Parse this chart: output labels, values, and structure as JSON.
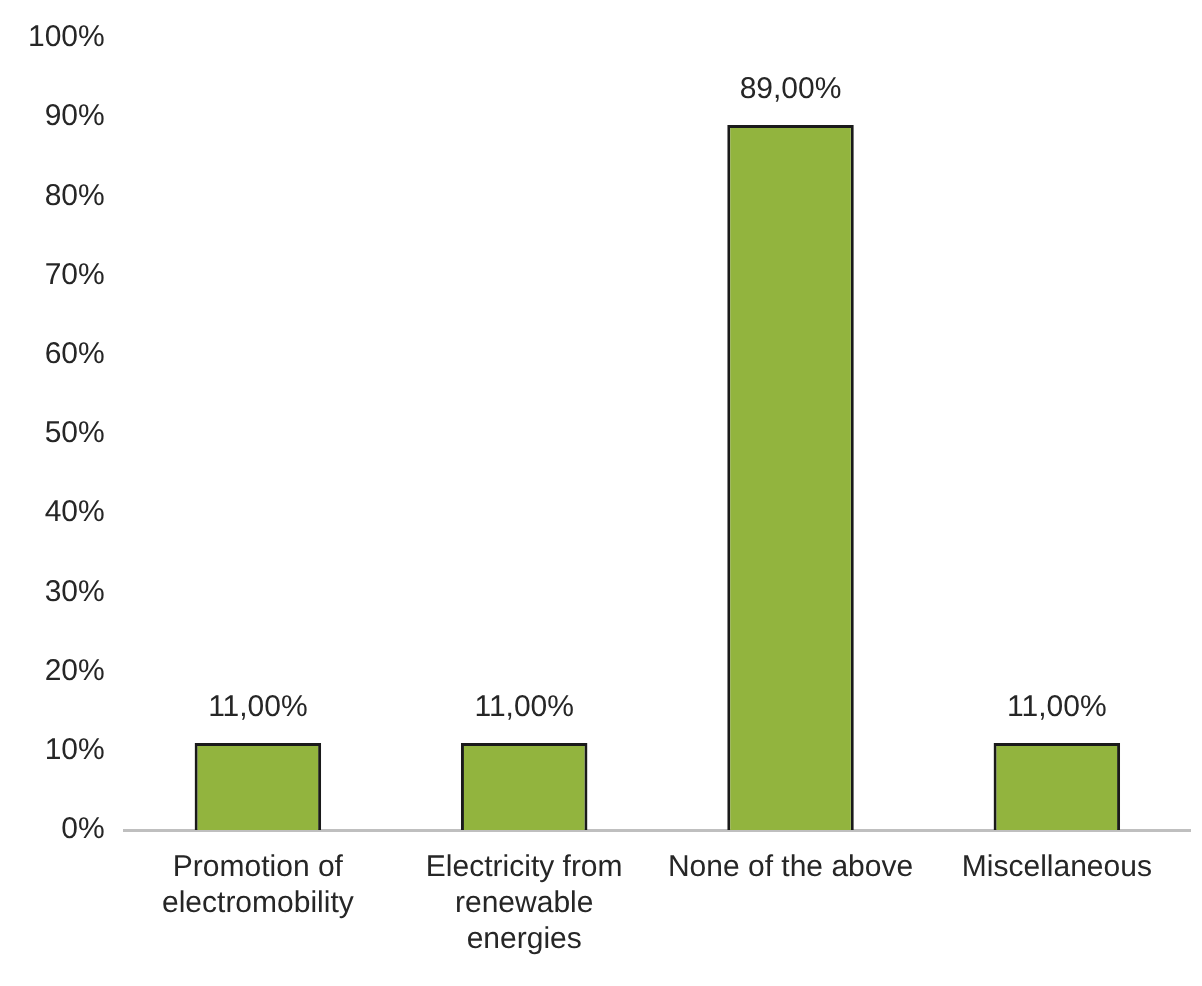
{
  "chart_data": {
    "type": "bar",
    "categories": [
      "Promotion of electromobility",
      "Electricity from renewable energies",
      "None of the above",
      "Miscellaneous"
    ],
    "values": [
      11,
      11,
      89,
      11
    ],
    "value_labels": [
      "11,00%",
      "11,00%",
      "89,00%",
      "11,00%"
    ],
    "color": "#92b43e",
    "ylim": [
      0,
      100
    ],
    "yticks": [
      {
        "value": 0,
        "label": "0%"
      },
      {
        "value": 10,
        "label": "10%"
      },
      {
        "value": 20,
        "label": "20%"
      },
      {
        "value": 30,
        "label": "30%"
      },
      {
        "value": 40,
        "label": "40%"
      },
      {
        "value": 50,
        "label": "50%"
      },
      {
        "value": 60,
        "label": "60%"
      },
      {
        "value": 70,
        "label": "70%"
      },
      {
        "value": 80,
        "label": "80%"
      },
      {
        "value": 90,
        "label": "90%"
      },
      {
        "value": 100,
        "label": "100%"
      }
    ],
    "grid": false,
    "legend": false
  }
}
